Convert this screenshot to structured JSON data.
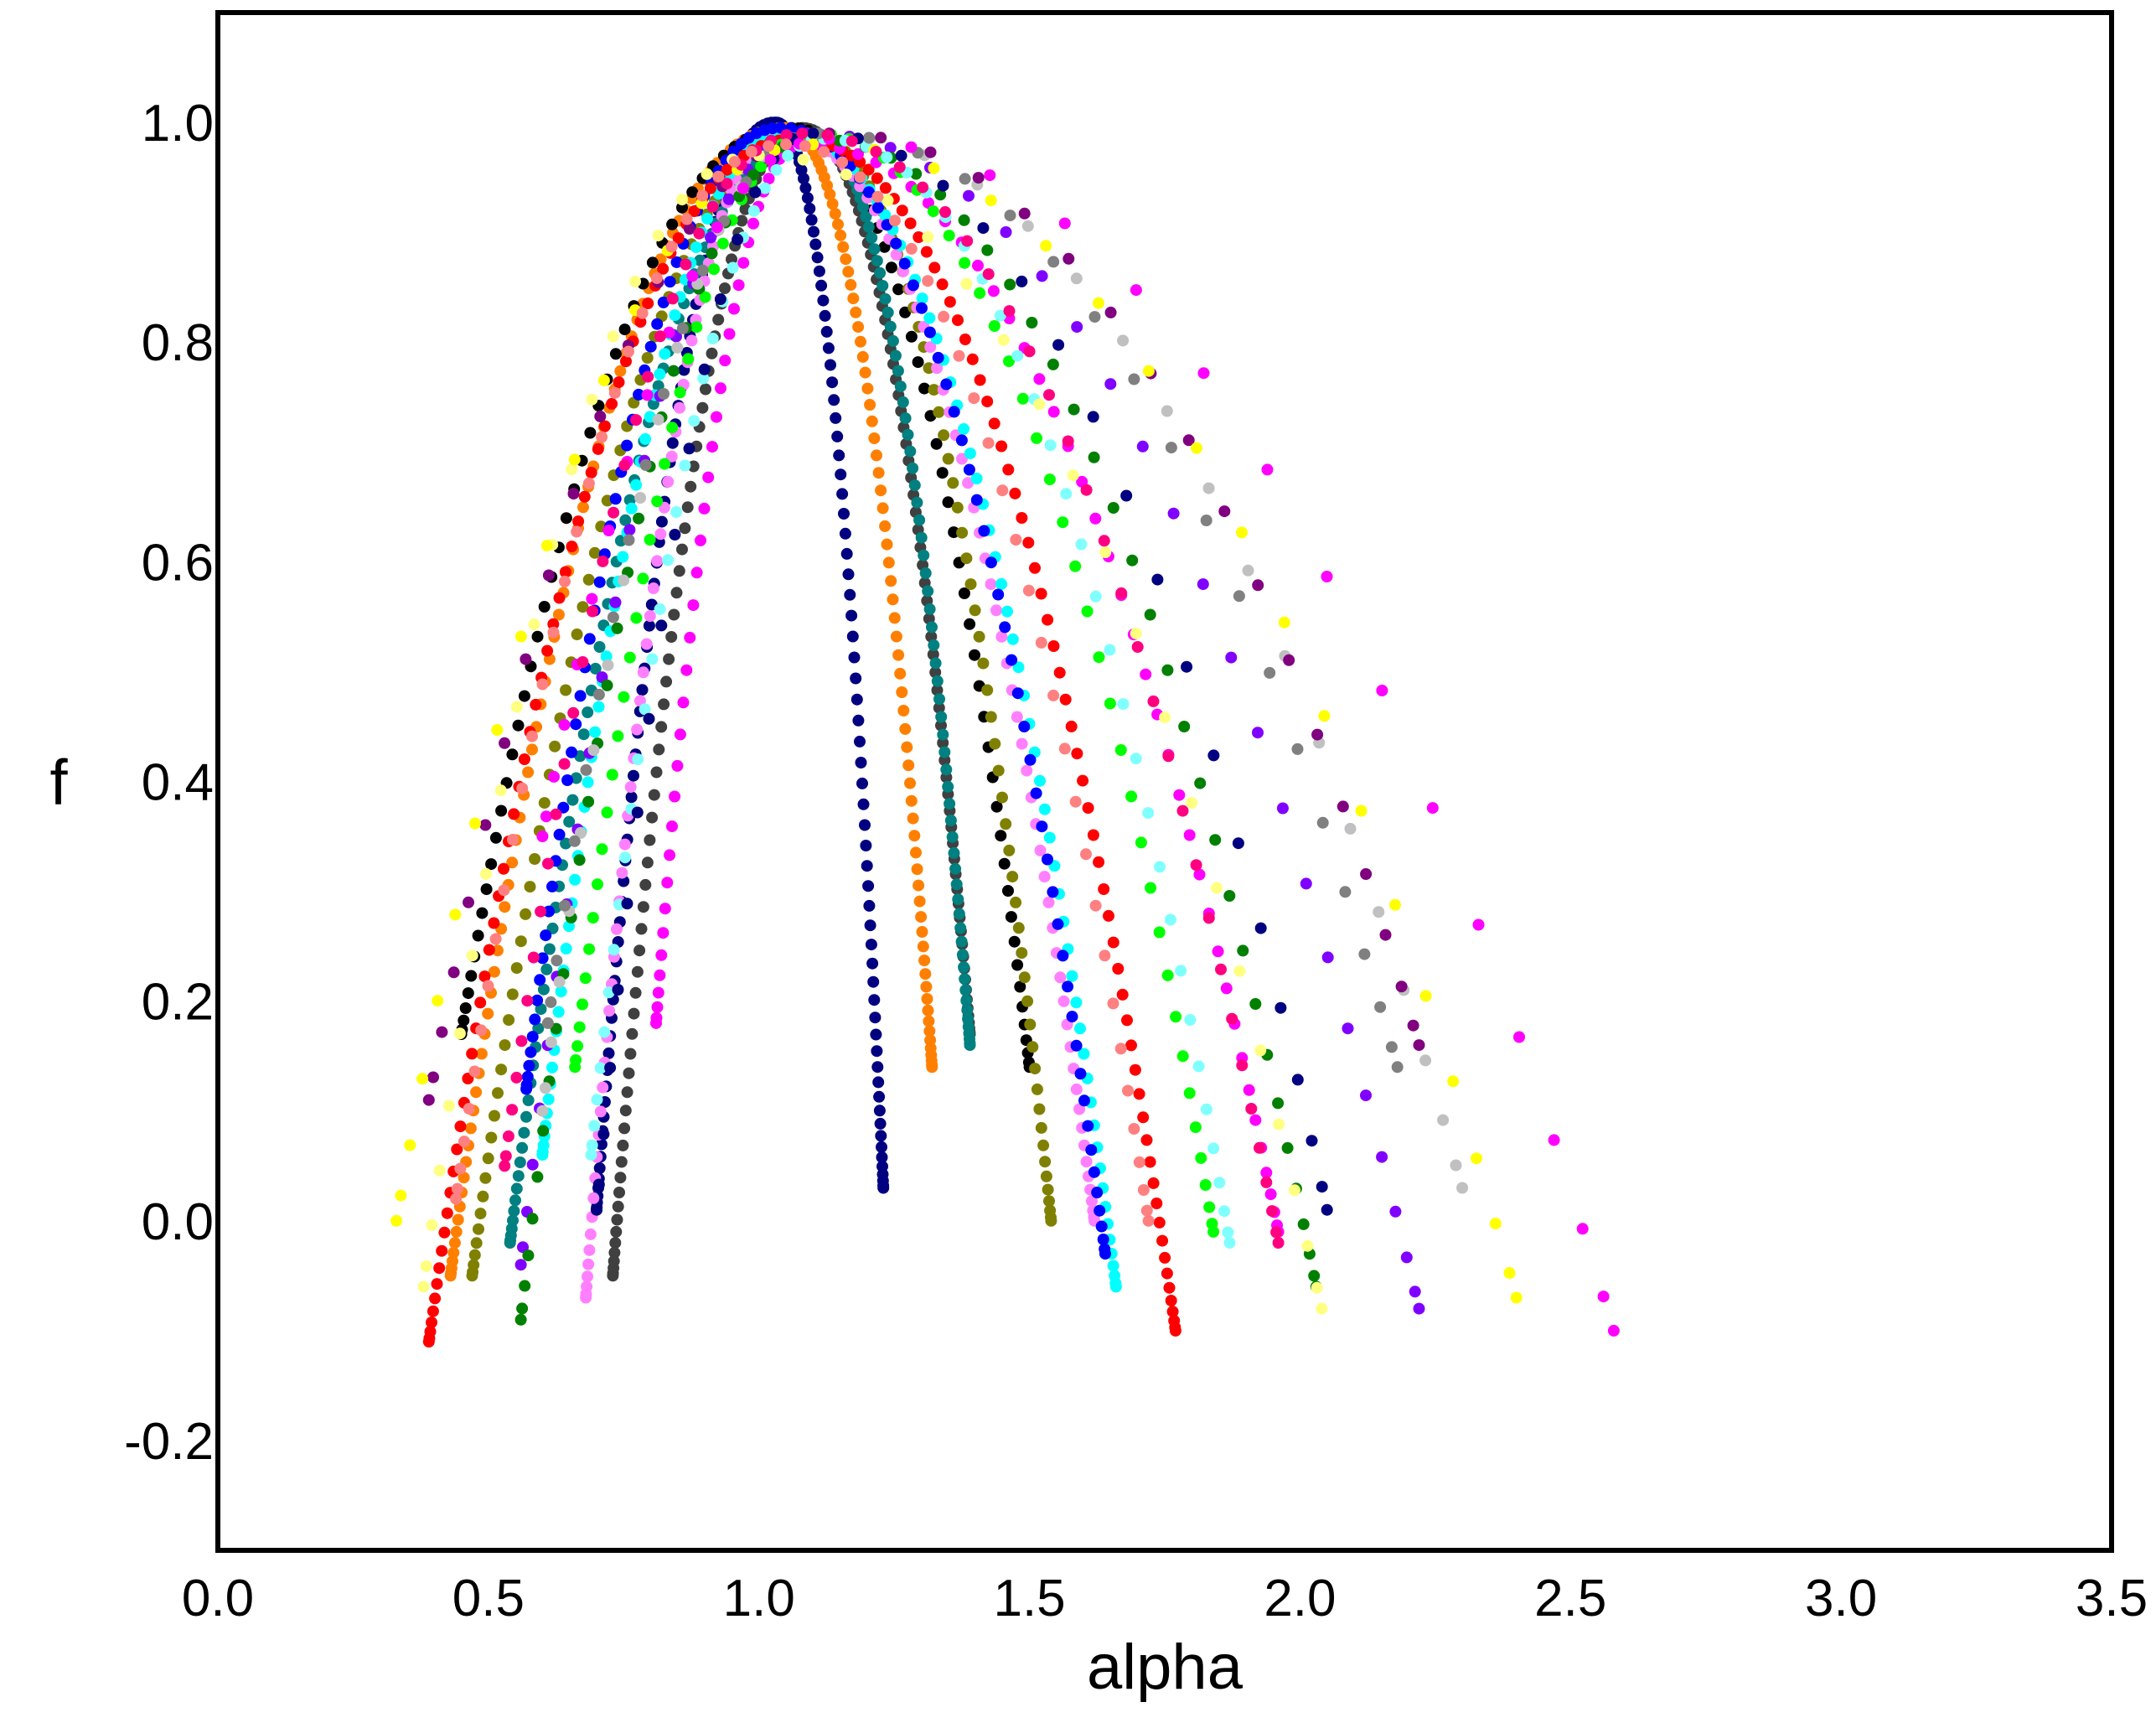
{
  "chart_data": {
    "type": "scatter",
    "title": "",
    "xlabel": "alpha",
    "ylabel": "f",
    "xlim": [
      0.0,
      3.5
    ],
    "ylim": [
      -0.3,
      1.1
    ],
    "x_ticks": [
      "0.0",
      "0.5",
      "1.0",
      "1.5",
      "2.0",
      "2.5",
      "3.0",
      "3.5"
    ],
    "y_ticks": [
      "-0.2",
      "0.0",
      "0.2",
      "0.4",
      "0.6",
      "0.8",
      "1.0"
    ],
    "x_tick_values": [
      0.0,
      0.5,
      1.0,
      1.5,
      2.0,
      2.5,
      3.0,
      3.5
    ],
    "y_tick_values": [
      -0.2,
      0.0,
      0.2,
      0.4,
      0.6,
      0.8,
      1.0
    ],
    "grid": false,
    "legend": "none",
    "marker": "filled-circle",
    "series": [
      {
        "color": "#000080",
        "alpha_min": 0.7,
        "f_left": 0.01,
        "alpha_peak": 1.03,
        "f_peak": 1.0,
        "alpha_max": 1.23,
        "f_right": 0.03,
        "n": 150
      },
      {
        "color": "#FF8000",
        "alpha_min": 0.43,
        "f_left": -0.05,
        "alpha_peak": 1.05,
        "f_peak": 0.995,
        "alpha_max": 1.32,
        "f_right": 0.14,
        "n": 150
      },
      {
        "color": "#404040",
        "alpha_min": 0.73,
        "f_left": -0.05,
        "alpha_peak": 1.08,
        "f_peak": 0.995,
        "alpha_max": 1.39,
        "f_right": 0.17,
        "n": 150
      },
      {
        "color": "#000000",
        "alpha_min": 0.45,
        "f_left": 0.17,
        "alpha_peak": 1.06,
        "f_peak": 0.995,
        "alpha_max": 1.5,
        "f_right": 0.14,
        "n": 90
      },
      {
        "color": "#808000",
        "alpha_min": 0.47,
        "f_left": -0.05,
        "alpha_peak": 1.09,
        "f_peak": 0.99,
        "alpha_max": 1.54,
        "f_right": 0.0,
        "n": 120
      },
      {
        "color": "#008080",
        "alpha_min": 0.54,
        "f_left": -0.02,
        "alpha_peak": 1.1,
        "f_peak": 0.99,
        "alpha_max": 1.39,
        "f_right": 0.16,
        "n": 150
      },
      {
        "color": "#FF80FF",
        "alpha_min": 0.68,
        "f_left": -0.07,
        "alpha_peak": 1.04,
        "f_peak": 0.99,
        "alpha_max": 1.62,
        "f_right": 0.0,
        "n": 120
      },
      {
        "color": "#00FFFF",
        "alpha_min": 0.6,
        "f_left": 0.06,
        "alpha_peak": 1.05,
        "f_peak": 0.99,
        "alpha_max": 1.66,
        "f_right": -0.06,
        "n": 120
      },
      {
        "color": "#0000FF",
        "alpha_min": 0.57,
        "f_left": 0.12,
        "alpha_peak": 1.04,
        "f_peak": 0.995,
        "alpha_max": 1.64,
        "f_right": -0.03,
        "n": 100
      },
      {
        "color": "#FF0000",
        "alpha_min": 0.39,
        "f_left": -0.11,
        "alpha_peak": 1.07,
        "f_peak": 0.985,
        "alpha_max": 1.77,
        "f_right": -0.1,
        "n": 130
      },
      {
        "color": "#FF00FF",
        "alpha_min": 0.81,
        "f_left": 0.18,
        "alpha_peak": 1.08,
        "f_peak": 0.98,
        "alpha_max": 1.96,
        "f_right": -0.01,
        "n": 80
      },
      {
        "color": "#8000FF",
        "alpha_min": 0.56,
        "f_left": -0.04,
        "alpha_peak": 1.09,
        "f_peak": 0.99,
        "alpha_max": 2.22,
        "f_right": -0.08,
        "n": 45
      },
      {
        "color": "#00FF00",
        "alpha_min": 0.66,
        "f_left": 0.14,
        "alpha_peak": 1.1,
        "f_peak": 0.99,
        "alpha_max": 1.84,
        "f_right": -0.01,
        "n": 70
      },
      {
        "color": "#008000",
        "alpha_min": 0.56,
        "f_left": -0.09,
        "alpha_peak": 1.1,
        "f_peak": 0.985,
        "alpha_max": 2.03,
        "f_right": -0.06,
        "n": 60
      },
      {
        "color": "#80FFFF",
        "alpha_min": 0.69,
        "f_left": 0.06,
        "alpha_peak": 1.12,
        "f_peak": 0.985,
        "alpha_max": 1.87,
        "f_right": -0.02,
        "n": 60
      },
      {
        "color": "#C0C0C0",
        "alpha_min": 0.6,
        "f_left": 0.1,
        "alpha_peak": 1.1,
        "f_peak": 0.99,
        "alpha_max": 2.3,
        "f_right": 0.03,
        "n": 35
      },
      {
        "color": "#808080",
        "alpha_min": 0.61,
        "f_left": 0.18,
        "alpha_peak": 1.11,
        "f_peak": 0.99,
        "alpha_max": 2.18,
        "f_right": 0.14,
        "n": 35
      },
      {
        "color": "#800080",
        "alpha_min": 0.39,
        "f_left": 0.11,
        "alpha_peak": 1.13,
        "f_peak": 0.99,
        "alpha_max": 2.22,
        "f_right": 0.16,
        "n": 35
      },
      {
        "color": "#000080",
        "alpha_min": 0.7,
        "f_left": 0.01,
        "alpha_peak": 1.1,
        "f_peak": 0.99,
        "alpha_max": 2.05,
        "f_right": 0.01,
        "n": 35
      },
      {
        "color": "#FFFF80",
        "alpha_min": 0.38,
        "f_left": -0.06,
        "alpha_peak": 1.0,
        "f_peak": 0.97,
        "alpha_max": 2.04,
        "f_right": -0.08,
        "n": 40
      },
      {
        "color": "#FFFF00",
        "alpha_min": 0.33,
        "f_left": 0.0,
        "alpha_peak": 1.1,
        "f_peak": 0.98,
        "alpha_max": 2.4,
        "f_right": -0.07,
        "n": 35
      },
      {
        "color": "#FF00FF",
        "alpha_min": 0.6,
        "f_left": 0.35,
        "alpha_peak": 1.13,
        "f_peak": 0.985,
        "alpha_max": 2.58,
        "f_right": -0.1,
        "n": 30
      },
      {
        "color": "#FF0080",
        "alpha_min": 0.53,
        "f_left": 0.05,
        "alpha_peak": 1.08,
        "f_peak": 0.99,
        "alpha_max": 1.96,
        "f_right": -0.02,
        "n": 60
      },
      {
        "color": "#FF8080",
        "alpha_min": 0.44,
        "f_left": 0.02,
        "alpha_peak": 1.05,
        "f_peak": 0.98,
        "alpha_max": 1.72,
        "f_right": 0.0,
        "n": 60
      }
    ]
  }
}
